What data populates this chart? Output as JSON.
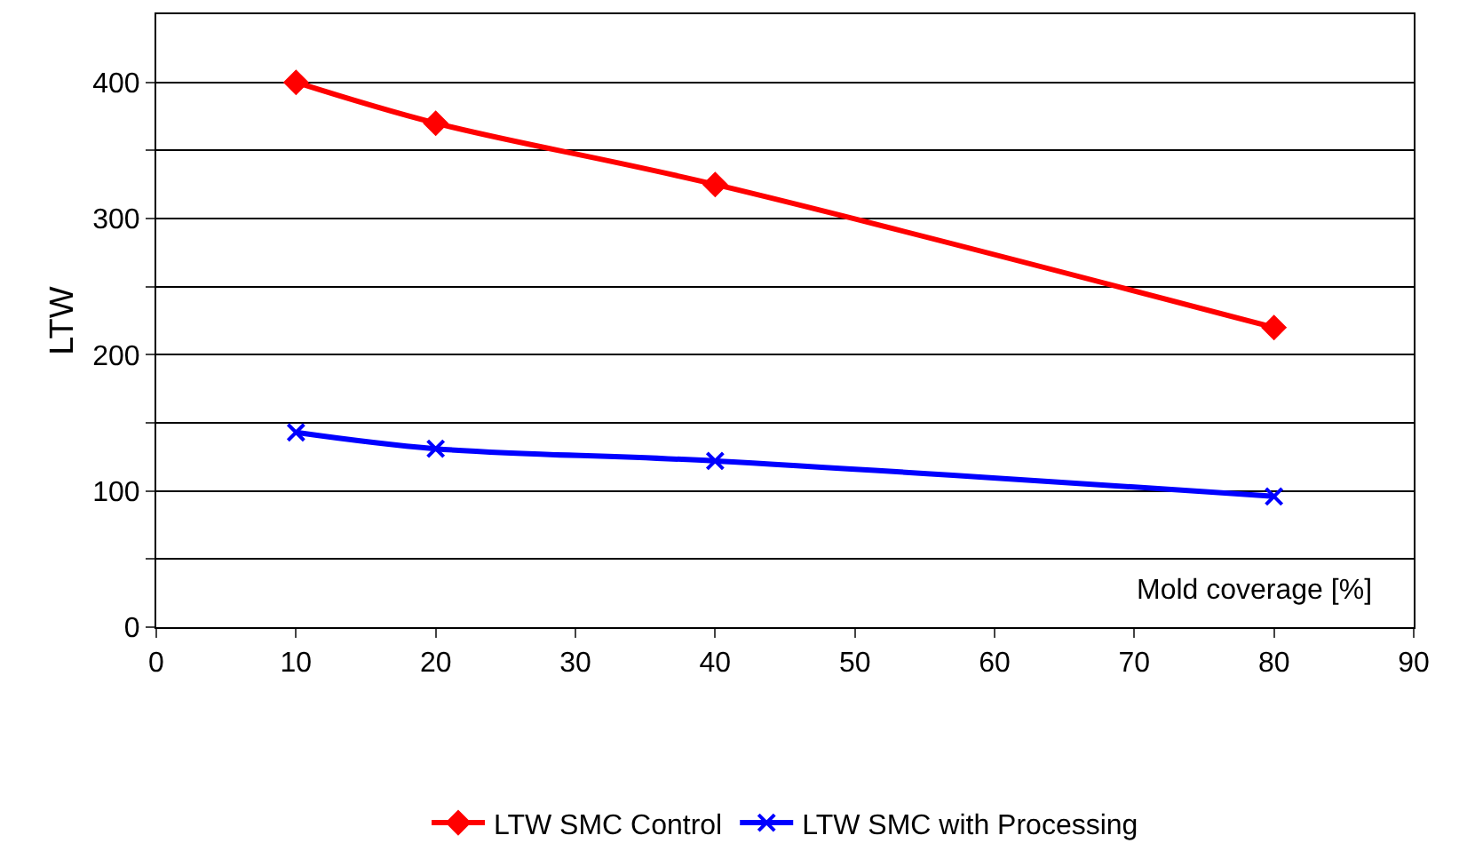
{
  "chart_data": {
    "type": "line",
    "xlabel": "Mold coverage [%]",
    "ylabel": "LTW",
    "x": [
      10,
      20,
      40,
      80
    ],
    "series": [
      {
        "name": "LTW SMC Control",
        "color": "#ff0000",
        "values": [
          400,
          370,
          325,
          220
        ],
        "marker": "diamond"
      },
      {
        "name": "LTW SMC with Processing",
        "color": "#0000ff",
        "values": [
          143,
          131,
          122,
          96
        ],
        "marker": "cross"
      }
    ],
    "xlim": [
      0,
      90
    ],
    "xticks": [
      0,
      10,
      20,
      30,
      40,
      50,
      60,
      70,
      80,
      90
    ],
    "ylim": [
      0,
      450
    ],
    "yticks": [
      0,
      {
        "value": 50,
        "label": null
      },
      100,
      {
        "value": 150,
        "label": null
      },
      200,
      {
        "value": 250,
        "label": null
      },
      300,
      {
        "value": 350,
        "label": null
      },
      400
    ],
    "grid": "y",
    "legend": "bottom",
    "line_style": "solid"
  }
}
